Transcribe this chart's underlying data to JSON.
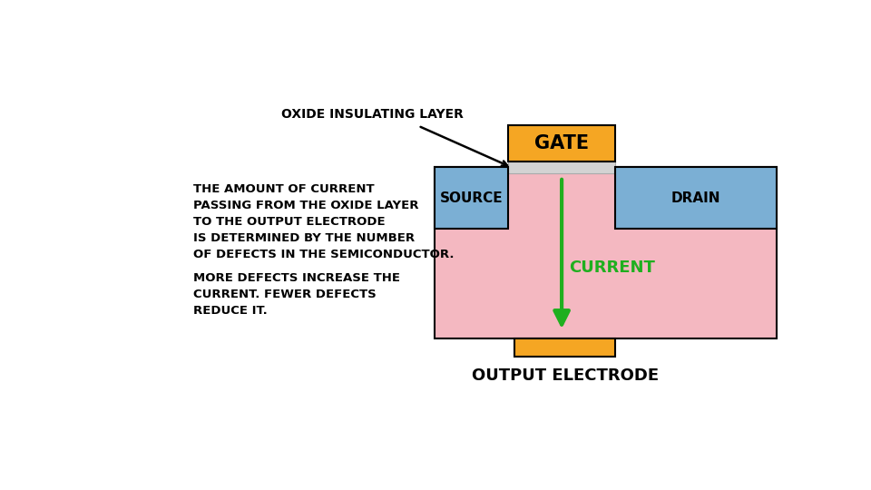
{
  "bg_color": "#ffffff",
  "orange_color": "#F5A623",
  "blue_color": "#7BAFD4",
  "pink_color": "#F4B8C1",
  "gray_color": "#D3D3D3",
  "green_color": "#1FAF1F",
  "black_color": "#000000",
  "gate_label": "GATE",
  "source_label": "SOURCE",
  "drain_label": "DRAIN",
  "current_label": "CURRENT",
  "output_label": "OUTPUT ELECTRODE",
  "oxide_label": "OXIDE INSULATING LAYER",
  "text1": "THE AMOUNT OF CURRENT\nPASSING FROM THE OXIDE LAYER\nTO THE OUTPUT ELECTRODE\nIS DETERMINED BY THE NUMBER\nOF DEFECTS IN THE SEMICONDUCTOR.",
  "text2": "MORE DEFECTS INCREASE THE\nCURRENT. FEWER DEFECTS\nREDUCE IT."
}
